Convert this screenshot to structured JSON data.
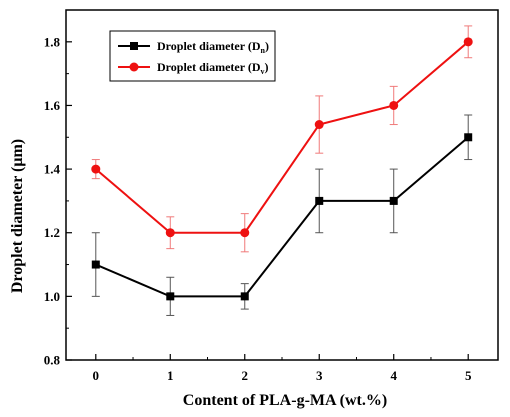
{
  "chart_data": {
    "type": "line",
    "xlabel": "Content of PLA-g-MA (wt.%)",
    "ylabel": "Droplet diameter (μm)",
    "x": [
      0,
      1,
      2,
      3,
      4,
      5
    ],
    "x_tick_labels": [
      "0",
      "1",
      "2",
      "3",
      "4",
      "5"
    ],
    "xlim": [
      -0.4,
      5.4
    ],
    "ylim": [
      0.8,
      1.9
    ],
    "y_ticks": [
      0.8,
      1.0,
      1.2,
      1.4,
      1.6,
      1.8
    ],
    "y_tick_labels": [
      "0.8",
      "1.0",
      "1.2",
      "1.4",
      "1.6",
      "1.8"
    ],
    "legend_position": "top-left",
    "series": [
      {
        "name": "Droplet diameter (D",
        "name_subscript": "n",
        "name_suffix": ")",
        "color": "#000000",
        "error_color": "#555555",
        "marker": "square",
        "values": [
          1.1,
          1.0,
          1.0,
          1.3,
          1.3,
          1.5
        ],
        "errors": [
          0.1,
          0.06,
          0.04,
          0.1,
          0.1,
          0.07
        ]
      },
      {
        "name": "Droplet diameter (D",
        "name_subscript": "v",
        "name_suffix": ")",
        "color": "#ee1111",
        "error_color": "#f07a7a",
        "marker": "circle",
        "values": [
          1.4,
          1.2,
          1.2,
          1.54,
          1.6,
          1.8
        ],
        "errors": [
          0.03,
          0.05,
          0.06,
          0.09,
          0.06,
          0.05
        ]
      }
    ]
  }
}
